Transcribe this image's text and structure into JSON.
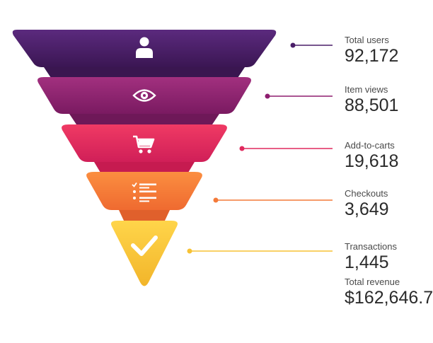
{
  "chart_data": {
    "type": "funnel",
    "stages": [
      {
        "label": "Total users",
        "value": "92,172",
        "icon": "user-icon",
        "color": "#4a1e68"
      },
      {
        "label": "Item views",
        "value": "88,501",
        "icon": "eye-icon",
        "color": "#8e1d6f"
      },
      {
        "label": "Add-to-carts",
        "value": "19,618",
        "icon": "cart-icon",
        "color": "#e02a5e"
      },
      {
        "label": "Checkouts",
        "value": "3,649",
        "icon": "checklist-icon",
        "color": "#f47a39"
      },
      {
        "label": "Transactions",
        "value": "1,445",
        "icon": "check-icon",
        "color": "#f7c234"
      }
    ],
    "total_revenue": {
      "label": "Total revenue",
      "value": "$162,646.7"
    }
  }
}
